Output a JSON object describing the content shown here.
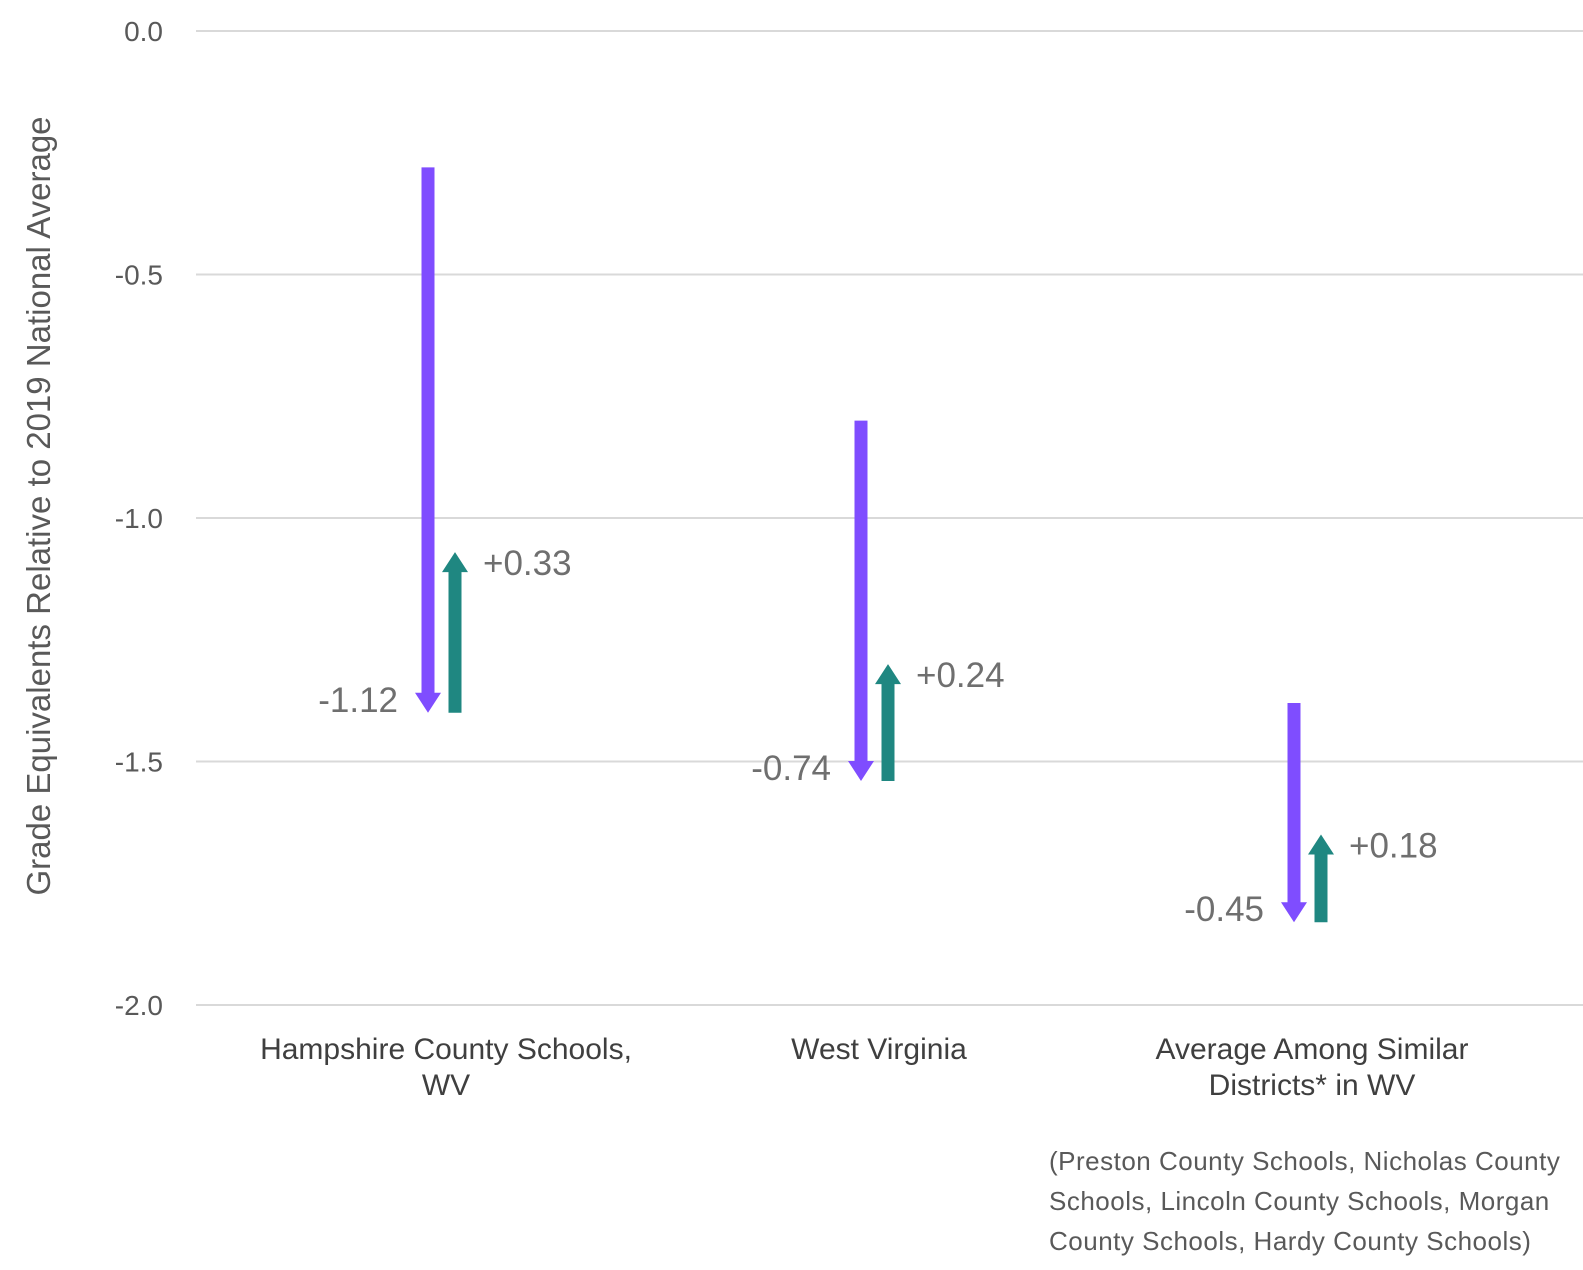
{
  "chart_data": {
    "type": "arrow",
    "ylabel": "Grade Equivalents Relative to 2019 National Average",
    "ylim": [
      -2.0,
      0.0
    ],
    "yticks": [
      "0.0",
      "-0.5",
      "-1.0",
      "-1.5",
      "-2.0"
    ],
    "ytick_values": [
      0.0,
      -0.5,
      -1.0,
      -1.5,
      -2.0
    ],
    "grid": true,
    "categories": [
      {
        "lines": [
          "Hampshire County Schools,",
          "WV"
        ]
      },
      {
        "lines": [
          "West Virginia"
        ]
      },
      {
        "lines": [
          "Average Among Similar",
          "Districts* in WV"
        ]
      }
    ],
    "series": [
      {
        "change_type": "decline",
        "color": "#7f4dff",
        "start": [
          -0.28,
          -0.8,
          -1.38
        ],
        "change": [
          -1.12,
          -0.74,
          -0.45
        ],
        "labels": [
          "-1.12",
          "-0.74",
          "-0.45"
        ]
      },
      {
        "change_type": "recovery",
        "color": "#1f8781",
        "start": [
          -1.4,
          -1.54,
          -1.83
        ],
        "change": [
          0.33,
          0.24,
          0.18
        ],
        "labels": [
          "+0.33",
          "+0.24",
          "+0.18"
        ]
      }
    ],
    "footnote": [
      "(Preston County Schools, Nicholas County",
      "Schools, Lincoln County Schools, Morgan",
      "County Schools, Hardy County Schools)"
    ]
  }
}
